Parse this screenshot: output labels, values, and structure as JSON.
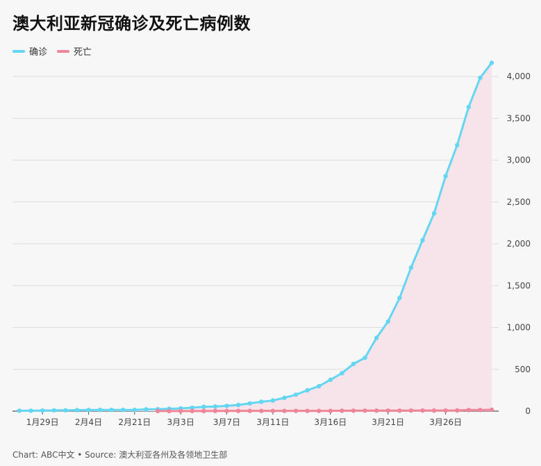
{
  "chart_data": {
    "type": "line",
    "title": "澳大利亚新冠确诊及死亡病例数",
    "legend": [
      {
        "name": "确诊",
        "color": "#63d6f2"
      },
      {
        "name": "死亡",
        "color": "#ee8599"
      }
    ],
    "y_ticks": [
      "0",
      "500",
      "1,000",
      "1,500",
      "2,000",
      "2,500",
      "3,000",
      "3,500",
      "4,000"
    ],
    "ylim": [
      0,
      4200
    ],
    "x_tick_labels": [
      "1月29日",
      "2月4日",
      "2月21日",
      "3月3日",
      "3月7日",
      "3月11日",
      "3月16日",
      "3月21日",
      "3月26日"
    ],
    "x_tick_indices": [
      2,
      6,
      10,
      14,
      18,
      22,
      27,
      32,
      37
    ],
    "series": [
      {
        "name": "确诊",
        "color": "#63d6f2",
        "values": [
          5,
          5,
          7,
          9,
          10,
          12,
          14,
          15,
          15,
          15,
          15,
          22,
          23,
          28,
          33,
          41,
          52,
          55,
          63,
          74,
          92,
          112,
          127,
          159,
          197,
          249,
          298,
          375,
          454,
          565,
          638,
          876,
          1071,
          1352,
          1716,
          2044,
          2364,
          2810,
          3179,
          3635,
          3984,
          4163
        ]
      },
      {
        "name": "死亡",
        "color": "#ee8599",
        "start_index": 12,
        "values": [
          1,
          1,
          1,
          1,
          1,
          2,
          2,
          3,
          3,
          3,
          3,
          3,
          3,
          3,
          3,
          3,
          5,
          5,
          6,
          6,
          6,
          6,
          7,
          7,
          7,
          7,
          8,
          13,
          14,
          16
        ]
      }
    ],
    "area_fill_color": "#f7e3ea",
    "grid": true,
    "legend_position": "top-left",
    "y_axis_position": "right"
  },
  "footer": "Chart: ABC中文 • Source: 澳大利亚各州及各领地卫生部"
}
